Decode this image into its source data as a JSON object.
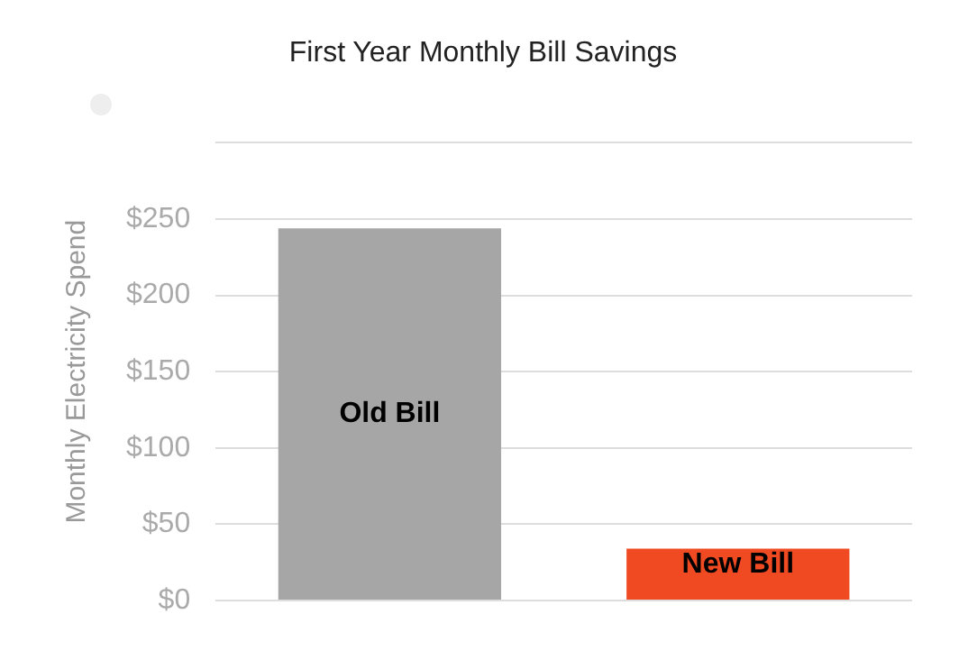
{
  "chart_data": {
    "type": "bar",
    "title": "First Year Monthly Bill Savings",
    "ylabel": "Monthly Electricity Spend",
    "categories": [
      "Old Bill",
      "New Bill"
    ],
    "values": [
      244,
      34
    ],
    "colors": [
      "#a6a6a6",
      "#f04a23"
    ],
    "ylim": [
      0,
      300
    ],
    "yticks": [
      {
        "value": 0,
        "label": "$0"
      },
      {
        "value": 50,
        "label": "$50"
      },
      {
        "value": 100,
        "label": "$100"
      },
      {
        "value": 150,
        "label": "$150"
      },
      {
        "value": 200,
        "label": "$200"
      },
      {
        "value": 250,
        "label": "$250"
      },
      {
        "value": 300,
        "label": null
      }
    ],
    "grid": "y",
    "tick_labels": "y"
  }
}
